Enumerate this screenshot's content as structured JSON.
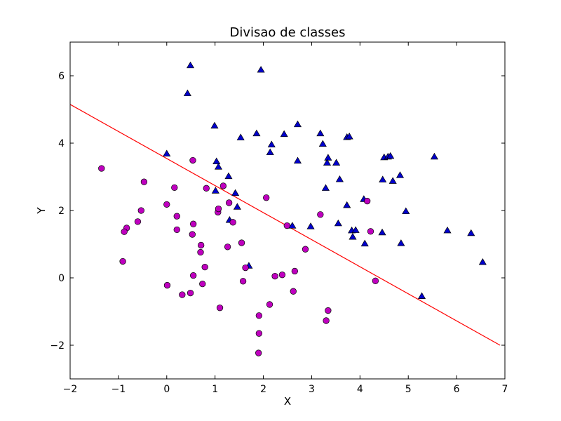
{
  "chart_data": {
    "type": "scatter",
    "title": "Divisao de classes",
    "xlabel": "X",
    "ylabel": "Y",
    "xlim": [
      -2,
      7
    ],
    "ylim": [
      -3,
      7
    ],
    "xticks": [
      -2,
      -1,
      0,
      1,
      2,
      3,
      4,
      5,
      6,
      7
    ],
    "yticks": [
      -2,
      0,
      2,
      4,
      6
    ],
    "ytick_labels": [
      "−2",
      "0",
      "2",
      "4",
      "6"
    ],
    "xtick_labels": [
      "−2",
      "−1",
      "0",
      "1",
      "2",
      "3",
      "4",
      "5",
      "6",
      "7"
    ],
    "grid": false,
    "colors": {
      "triangle_fill": "#0000cc",
      "circle_fill": "#bf00bf",
      "line": "#ff0000"
    },
    "series": [
      {
        "marker": "triangle",
        "color": "#0000cc",
        "x": [
          0.49,
          0.43,
          1.95,
          0.0,
          0.99,
          1.03,
          1.07,
          1.28,
          1.01,
          1.42,
          1.46,
          1.3,
          1.7,
          1.53,
          1.86,
          2.14,
          2.17,
          2.43,
          2.71,
          2.71,
          2.6,
          3.18,
          3.23,
          3.34,
          3.32,
          3.51,
          3.58,
          3.29,
          3.73,
          3.78,
          3.83,
          3.73,
          3.55,
          2.98,
          3.85,
          3.91,
          4.08,
          4.1,
          4.47,
          4.5,
          4.58,
          4.63,
          4.68,
          4.83,
          4.85,
          4.95,
          4.46,
          5.54,
          5.28,
          5.81,
          6.3,
          6.54
        ],
        "y": [
          6.3,
          5.47,
          6.17,
          3.68,
          4.51,
          3.45,
          3.29,
          3.01,
          2.58,
          2.51,
          2.1,
          1.71,
          0.35,
          4.16,
          4.28,
          3.72,
          3.95,
          4.26,
          4.55,
          3.47,
          1.54,
          4.28,
          3.97,
          3.56,
          3.41,
          3.41,
          2.92,
          2.66,
          4.17,
          4.19,
          1.4,
          2.15,
          1.61,
          1.52,
          1.21,
          1.41,
          2.33,
          1.01,
          2.91,
          3.57,
          3.59,
          3.61,
          2.87,
          3.04,
          1.02,
          1.97,
          1.34,
          3.59,
          -0.55,
          1.4,
          1.32,
          0.46
        ]
      },
      {
        "marker": "circle",
        "color": "#bf00bf",
        "x": [
          -1.35,
          -0.47,
          -0.83,
          -0.88,
          -0.91,
          -0.53,
          -0.6,
          0.16,
          0.54,
          0.82,
          0.0,
          0.21,
          0.21,
          0.55,
          0.53,
          0.71,
          0.7,
          0.79,
          0.55,
          0.74,
          0.01,
          0.32,
          0.49,
          1.06,
          1.07,
          1.17,
          1.26,
          1.29,
          1.37,
          1.55,
          1.1,
          1.58,
          1.63,
          1.91,
          1.91,
          1.9,
          2.06,
          2.13,
          2.24,
          2.39,
          2.49,
          2.62,
          2.65,
          2.87,
          3.18,
          3.3,
          3.34,
          4.15,
          4.22,
          4.32
        ],
        "y": [
          3.25,
          2.85,
          1.48,
          1.37,
          0.49,
          2.0,
          1.67,
          2.68,
          3.49,
          2.66,
          2.18,
          1.83,
          1.43,
          1.6,
          1.29,
          0.97,
          0.76,
          0.32,
          0.07,
          -0.18,
          -0.22,
          -0.5,
          -0.45,
          1.95,
          2.05,
          2.73,
          0.92,
          2.23,
          1.65,
          1.04,
          -0.89,
          -0.1,
          0.3,
          -1.12,
          -1.65,
          -2.23,
          2.38,
          -0.79,
          0.05,
          0.09,
          1.55,
          -0.4,
          0.2,
          0.85,
          1.88,
          -1.27,
          -0.97,
          2.28,
          1.38,
          -0.09
        ]
      }
    ],
    "decision_line": {
      "x": [
        -2,
        6.9
      ],
      "y": [
        5.15,
        -2.0
      ]
    }
  }
}
